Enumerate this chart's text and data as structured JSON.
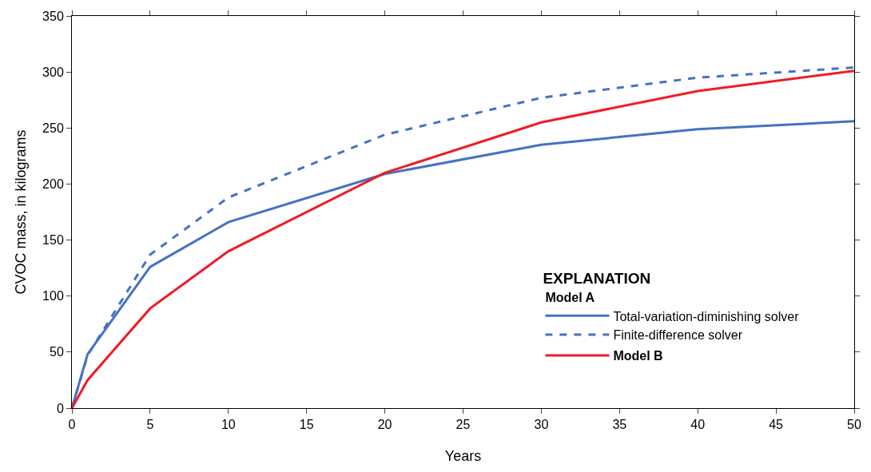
{
  "chart_data": {
    "type": "line",
    "xlabel": "Years",
    "ylabel": "CVOC mass, in kilograms",
    "legend_title": "EXPLANATION",
    "annotations": [
      "Model A"
    ],
    "x": [
      0,
      1,
      5,
      10,
      20,
      30,
      40,
      50
    ],
    "series": [
      {
        "name": "Total-variation-diminishing solver",
        "color": "#4472c4",
        "values": [
          0,
          48,
          126,
          166,
          209,
          235,
          249,
          256
        ],
        "line_style": "solid"
      },
      {
        "name": "Finite-difference solver",
        "color": "#4472c4",
        "values": [
          0,
          47,
          137,
          188,
          244,
          277,
          295,
          304
        ],
        "line_style": "dashed"
      },
      {
        "name": "Model B",
        "color": "#ee1c25",
        "values": [
          0,
          25,
          89,
          140,
          210,
          255,
          283,
          301
        ],
        "line_style": "solid"
      }
    ],
    "xlim": [
      0,
      50
    ],
    "xticks": [
      0,
      5,
      10,
      15,
      20,
      25,
      30,
      35,
      40,
      45,
      50
    ],
    "ylim": [
      0,
      350
    ],
    "yticks": [
      0,
      50,
      100,
      150,
      200,
      250,
      300,
      350
    ],
    "legend": "bottom right",
    "marker": "none"
  }
}
